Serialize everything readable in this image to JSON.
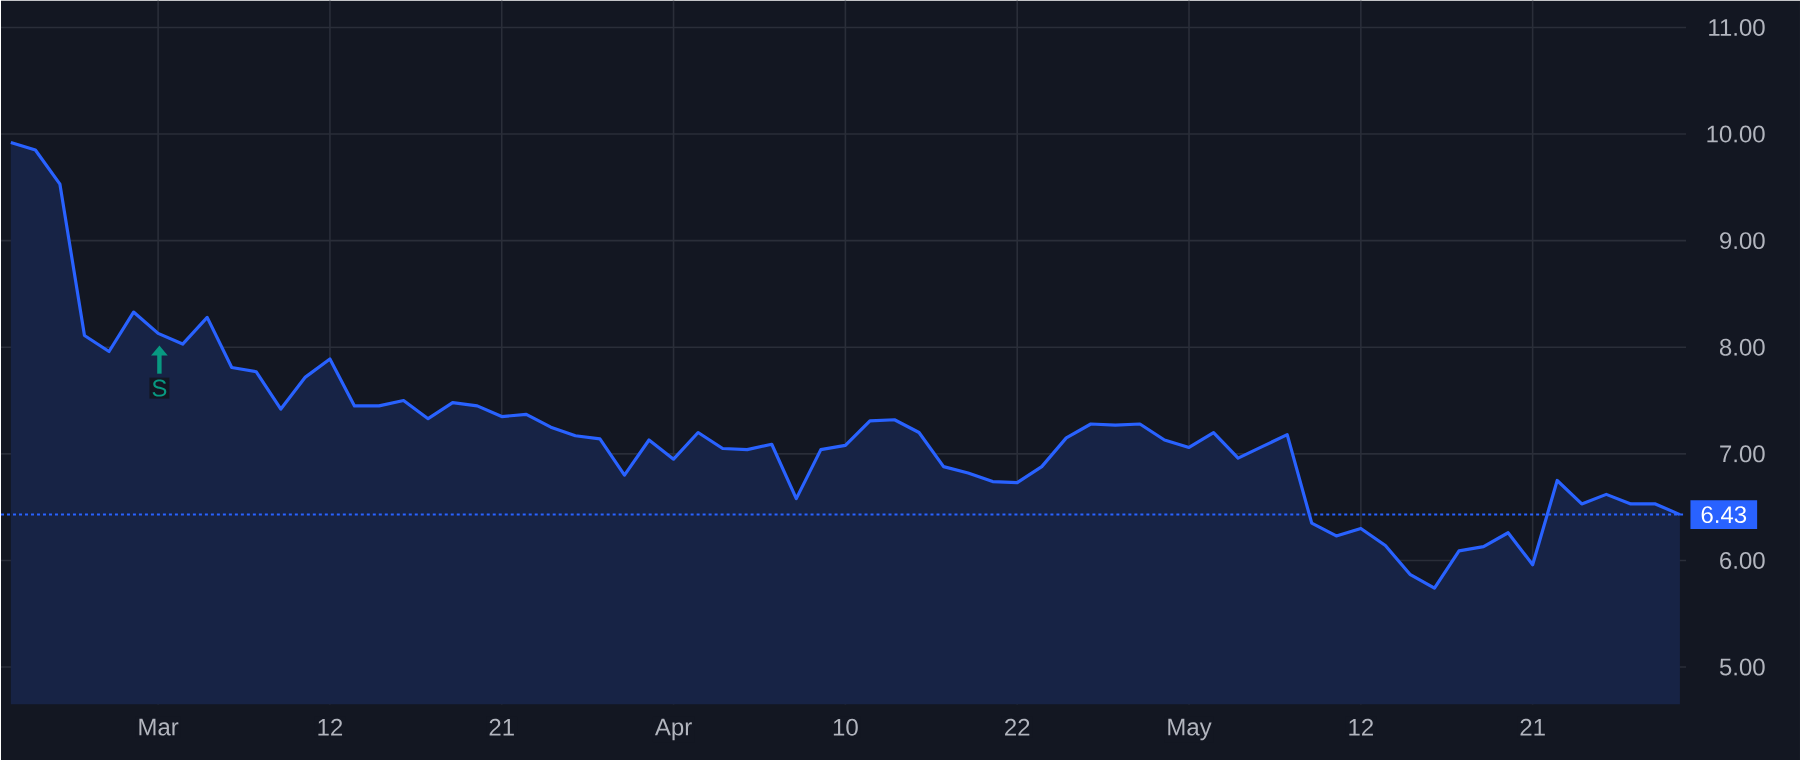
{
  "chart_data": {
    "type": "area",
    "categories": [
      null,
      null,
      null,
      null,
      null,
      null,
      "Mar",
      null,
      null,
      null,
      null,
      null,
      null,
      "12",
      null,
      null,
      null,
      null,
      null,
      null,
      "21",
      null,
      null,
      null,
      null,
      null,
      null,
      "Apr",
      null,
      null,
      null,
      null,
      null,
      null,
      "10",
      null,
      null,
      null,
      null,
      null,
      null,
      "22",
      null,
      null,
      null,
      null,
      null,
      null,
      "May",
      null,
      null,
      null,
      null,
      null,
      null,
      "12",
      null,
      null,
      null,
      null,
      null,
      null,
      "21",
      null,
      null,
      null,
      null,
      null,
      null
    ],
    "series": [
      {
        "color": "#2962ff",
        "values": [
          9.92,
          9.85,
          9.53,
          8.11,
          7.96,
          8.33,
          8.13,
          8.03,
          8.28,
          7.81,
          7.77,
          7.42,
          7.72,
          7.89,
          7.45,
          7.45,
          7.5,
          7.33,
          7.48,
          7.45,
          7.35,
          7.37,
          7.25,
          7.17,
          7.14,
          6.8,
          7.13,
          6.95,
          7.2,
          7.05,
          7.04,
          7.09,
          6.58,
          7.04,
          7.08,
          7.31,
          7.32,
          7.2,
          6.88,
          6.82,
          6.74,
          6.73,
          6.88,
          7.15,
          7.28,
          7.27,
          7.28,
          7.13,
          7.06,
          7.2,
          6.96,
          7.07,
          7.18,
          6.35,
          6.23,
          6.3,
          6.14,
          5.87,
          5.74,
          6.09,
          6.13,
          6.26,
          5.96,
          6.75,
          6.53,
          6.62,
          6.53,
          6.53,
          6.43
        ]
      }
    ],
    "ylim": [
      4.65,
      11.25
    ],
    "yticks": [
      {
        "value": 5,
        "label": "5.00"
      },
      {
        "value": 6,
        "label": "6.00"
      },
      {
        "value": 7,
        "label": "7.00"
      },
      {
        "value": 8,
        "label": "8.00"
      },
      {
        "value": 9,
        "label": "9.00"
      },
      {
        "value": 10,
        "label": "10.00"
      },
      {
        "value": 11,
        "label": "11.00"
      }
    ],
    "grid": true,
    "ref_lines": [
      {
        "axis": "y",
        "value": 6.43,
        "label": "6.43",
        "color": "#2962ff",
        "line_style": "dotted"
      }
    ],
    "annotations": [
      "S"
    ]
  }
}
